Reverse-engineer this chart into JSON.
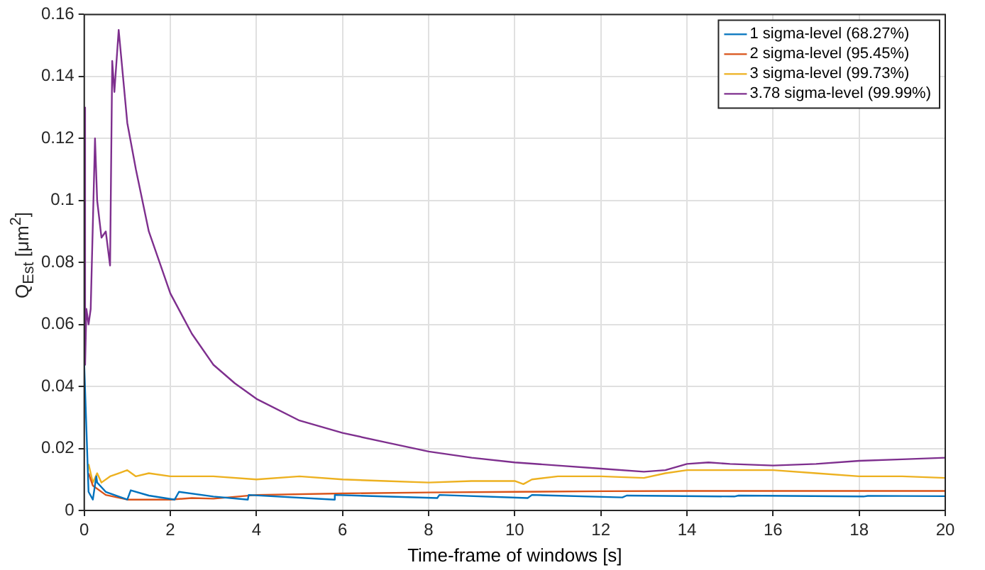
{
  "chart_data": {
    "type": "line",
    "xlabel": "Time-frame of windows [s]",
    "ylabel": "Q$_{Est}$ [μm$^{2}$]",
    "xlim": [
      0,
      20
    ],
    "xticks": [
      0,
      2,
      4,
      6,
      8,
      10,
      12,
      14,
      16,
      18,
      20
    ],
    "ylim": [
      0,
      0.16
    ],
    "yticks": [
      0,
      0.02,
      0.04,
      0.06,
      0.08,
      0.1,
      0.12,
      0.14,
      0.16
    ],
    "grid": true,
    "legend": "top right",
    "marker": "none",
    "line_style": "solid",
    "series": [
      {
        "name": "1 sigma-level (68.27%)",
        "color": "#0072bd",
        "x": [
          0,
          0.1,
          0.2,
          0.28,
          0.3,
          0.5,
          1.0,
          1.08,
          1.5,
          2.1,
          2.2,
          3,
          3.8,
          3.82,
          5.8,
          5.82,
          8.2,
          8.25,
          10.3,
          10.4,
          12.5,
          12.6,
          15.1,
          15.2,
          18.1,
          18.2,
          20
        ],
        "values": [
          0.047,
          0.006,
          0.0035,
          0.011,
          0.009,
          0.006,
          0.0035,
          0.0065,
          0.0048,
          0.0035,
          0.006,
          0.0045,
          0.0035,
          0.005,
          0.0035,
          0.005,
          0.004,
          0.005,
          0.004,
          0.005,
          0.0042,
          0.0048,
          0.0045,
          0.0048,
          0.0045,
          0.0047,
          0.0046
        ]
      },
      {
        "name": "2 sigma-level (95.45%)",
        "color": "#d95319",
        "x": [
          0.1,
          0.2,
          0.5,
          1.0,
          2,
          2.5,
          3,
          4,
          6,
          8,
          10,
          12,
          14,
          16,
          18,
          20
        ],
        "values": [
          0.012,
          0.008,
          0.005,
          0.0035,
          0.0035,
          0.004,
          0.0038,
          0.005,
          0.0055,
          0.0058,
          0.006,
          0.0062,
          0.0063,
          0.0063,
          0.0063,
          0.0063
        ]
      },
      {
        "name": "3 sigma-level (99.73%)",
        "color": "#edb120",
        "x": [
          0.1,
          0.2,
          0.3,
          0.4,
          0.6,
          0.8,
          1.0,
          1.2,
          1.5,
          2,
          3,
          4,
          5,
          6,
          7,
          8,
          9,
          10,
          10.2,
          10.4,
          11,
          12,
          13,
          13.5,
          14,
          15,
          16,
          17,
          18,
          19,
          20
        ],
        "values": [
          0.015,
          0.009,
          0.012,
          0.009,
          0.011,
          0.012,
          0.013,
          0.011,
          0.012,
          0.011,
          0.011,
          0.01,
          0.011,
          0.01,
          0.0095,
          0.009,
          0.0095,
          0.0095,
          0.0085,
          0.01,
          0.011,
          0.011,
          0.0105,
          0.012,
          0.013,
          0.013,
          0.013,
          0.012,
          0.011,
          0.011,
          0.0105
        ]
      },
      {
        "name": "3.78 sigma-level (99.99%)",
        "color": "#7e2f8e",
        "x": [
          0,
          0.02,
          0.05,
          0.1,
          0.15,
          0.25,
          0.3,
          0.4,
          0.5,
          0.6,
          0.65,
          0.7,
          0.75,
          0.8,
          0.9,
          1.0,
          1.2,
          1.5,
          2,
          2.5,
          3,
          3.5,
          4,
          5,
          6,
          7,
          8,
          9,
          10,
          11,
          12,
          13,
          13.5,
          14,
          14.5,
          15,
          16,
          17,
          18,
          19,
          20
        ],
        "values": [
          0.13,
          0.047,
          0.065,
          0.06,
          0.065,
          0.12,
          0.1,
          0.088,
          0.09,
          0.079,
          0.145,
          0.135,
          0.145,
          0.155,
          0.14,
          0.125,
          0.11,
          0.09,
          0.07,
          0.057,
          0.047,
          0.041,
          0.036,
          0.029,
          0.025,
          0.022,
          0.019,
          0.017,
          0.0155,
          0.0145,
          0.0135,
          0.0125,
          0.013,
          0.015,
          0.0155,
          0.015,
          0.0145,
          0.015,
          0.016,
          0.0165,
          0.017
        ]
      }
    ]
  }
}
